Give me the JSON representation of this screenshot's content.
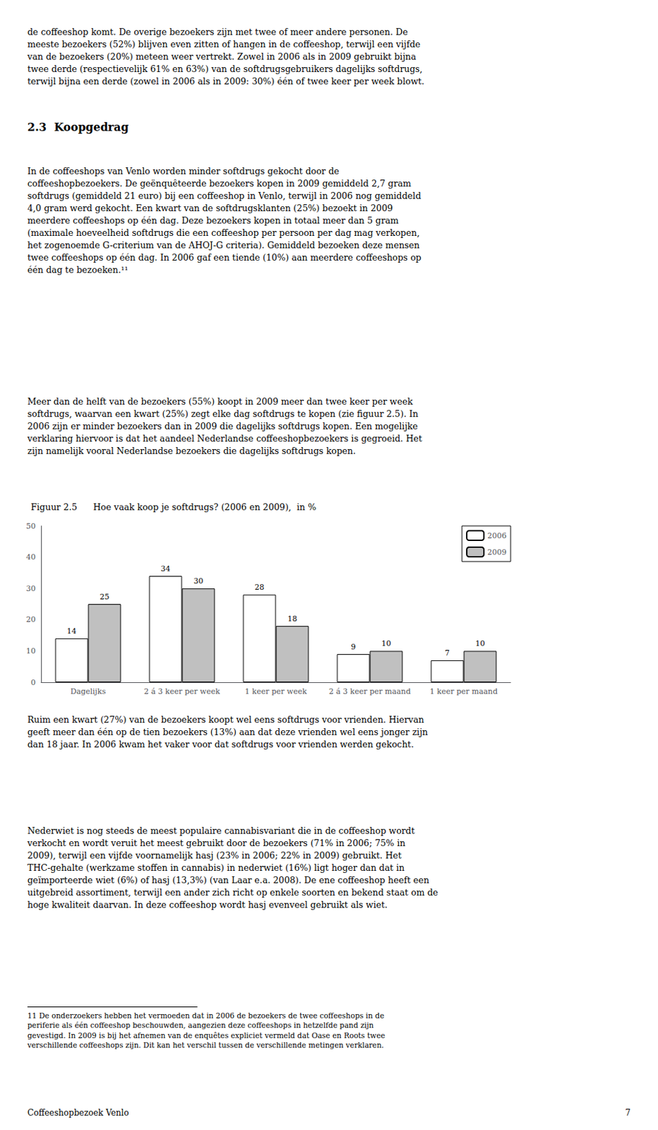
{
  "chart_data": {
    "type": "bar",
    "title": "Figuur 2.5",
    "subtitle": "Hoe vaak koop je softdrugs? (2006 en 2009),  in %",
    "categories": [
      "Dagelijks",
      "2 á 3 keer per week",
      "1 keer per week",
      "2 á 3 keer per maand",
      "1 keer per maand"
    ],
    "series": [
      {
        "name": "2006",
        "color": "#ffffff",
        "values": [
          14,
          34,
          28,
          9,
          7
        ]
      },
      {
        "name": "2009",
        "color": "#c0c0c0",
        "values": [
          25,
          30,
          18,
          10,
          10
        ]
      }
    ],
    "ylim": [
      0,
      50
    ],
    "yticks": [
      0,
      10,
      20,
      30,
      40,
      50
    ],
    "grid": false,
    "legend": "upper right",
    "data_labels": true,
    "annotations": [
      "de coffeeshop komt. De overige bezoekers zijn met twee of meer andere personen. De\nmeeste bezoekers (52%) blijven even zitten of hangen in de coffeeshop, terwijl een vijfde\nvan de bezoekers (20%) meteen weer vertrekt. Zowel in 2006 als in 2009 gebruikt bijna\ntwee derde (respectievelijk 61% en 63%) van de softdrugsgebruikers dagelijks softdrugs,\nterwijl bijna een derde (zowel in 2006 als in 2009: 30%) één of twee keer per week blowt.",
      "2.3  Koopgedrag",
      "In de coffeeshops van Venlo worden minder softdrugs gekocht door de\ncoffeeshopbezoekers. De geënquêteerde bezoekers kopen in 2009 gemiddeld 2,7 gram\nsoftdrugs (gemiddeld 21 euro) bij een coffeeshop in Venlo, terwijl in 2006 nog gemiddeld\n4,0 gram werd gekocht. Een kwart van de softdrugsklanten (25%) bezoekt in 2009\nmeerdere coffeeshops op één dag. Deze bezoekers kopen in totaal meer dan 5 gram\n(maximale hoeveelheid softdrugs die een coffeeshop per persoon per dag mag verkopen,\nhet zogenoemde G-criterium van de AHOJ-G criteria). Gemiddeld bezoeken deze mensen\ntwee coffeeshops op één dag. In 2006 gaf een tiende (10%) aan meerdere coffeeshops op\néén dag te bezoeken.¹¹",
      "Meer dan de helft van de bezoekers (55%) koopt in 2009 meer dan twee keer per week\nsoftdrugs, waarvan een kwart (25%) zegt elke dag softdrugs te kopen (zie figuur 2.5). In\n2006 zijn er minder bezoekers dan in 2009 die dagelijks softdrugs kopen. Een mogelijke\nverklaring hiervoor is dat het aandeel Nederlandse coffeeshopbezoekers is gegroeid. Het\nzijn namelijk vooral Nederlandse bezoekers die dagelijks softdrugs kopen.",
      "Ruim een kwart (27%) van de bezoekers koopt wel eens softdrugs voor vrienden. Hiervan\ngeeft meer dan één op de tien bezoekers (13%) aan dat deze vrienden wel eens jonger zijn\ndan 18 jaar. In 2006 kwam het vaker voor dat softdrugs voor vrienden werden gekocht.",
      "Nederwiet is nog steeds de meest populaire cannabisvariant die in de coffeeshop wordt\nverkocht en wordt veruit het meest gebruikt door de bezoekers (71% in 2006; 75% in\n2009), terwijl een vijfde voornamelijk hasj (23% in 2006; 22% in 2009) gebruikt. Het\nTHC-gehalte (werkzame stoffen in cannabis) in nederwiet (16%) ligt hoger dan dat in\ngeïmporteerde wiet (6%) of hasj (13,3%) (van Laar e.a. 2008). De ene coffeeshop heeft een\nuitgebreid assortiment, terwijl een ander zich richt op enkele soorten en bekend staat om de\nhoge kwaliteit daarvan. In deze coffeeshop wordt hasj evenveel gebruikt als wiet.",
      "11 De onderzoekers hebben het vermoeden dat in 2006 de bezoekers de twee coffeeshops in de\nperiferie als één coffeeshop beschouwden, aangezien deze coffeeshops in hetzelfde pand zijn\ngevestigd. In 2009 is bij het afnemen van de enquêtes expliciet vermeld dat Oase en Roots twee\nverschillende coffeeshops zijn. Dit kan het verschil tussen de verschillende metingen verklaren.",
      "Coffeeshopbezoek Venlo",
      "7"
    ]
  }
}
